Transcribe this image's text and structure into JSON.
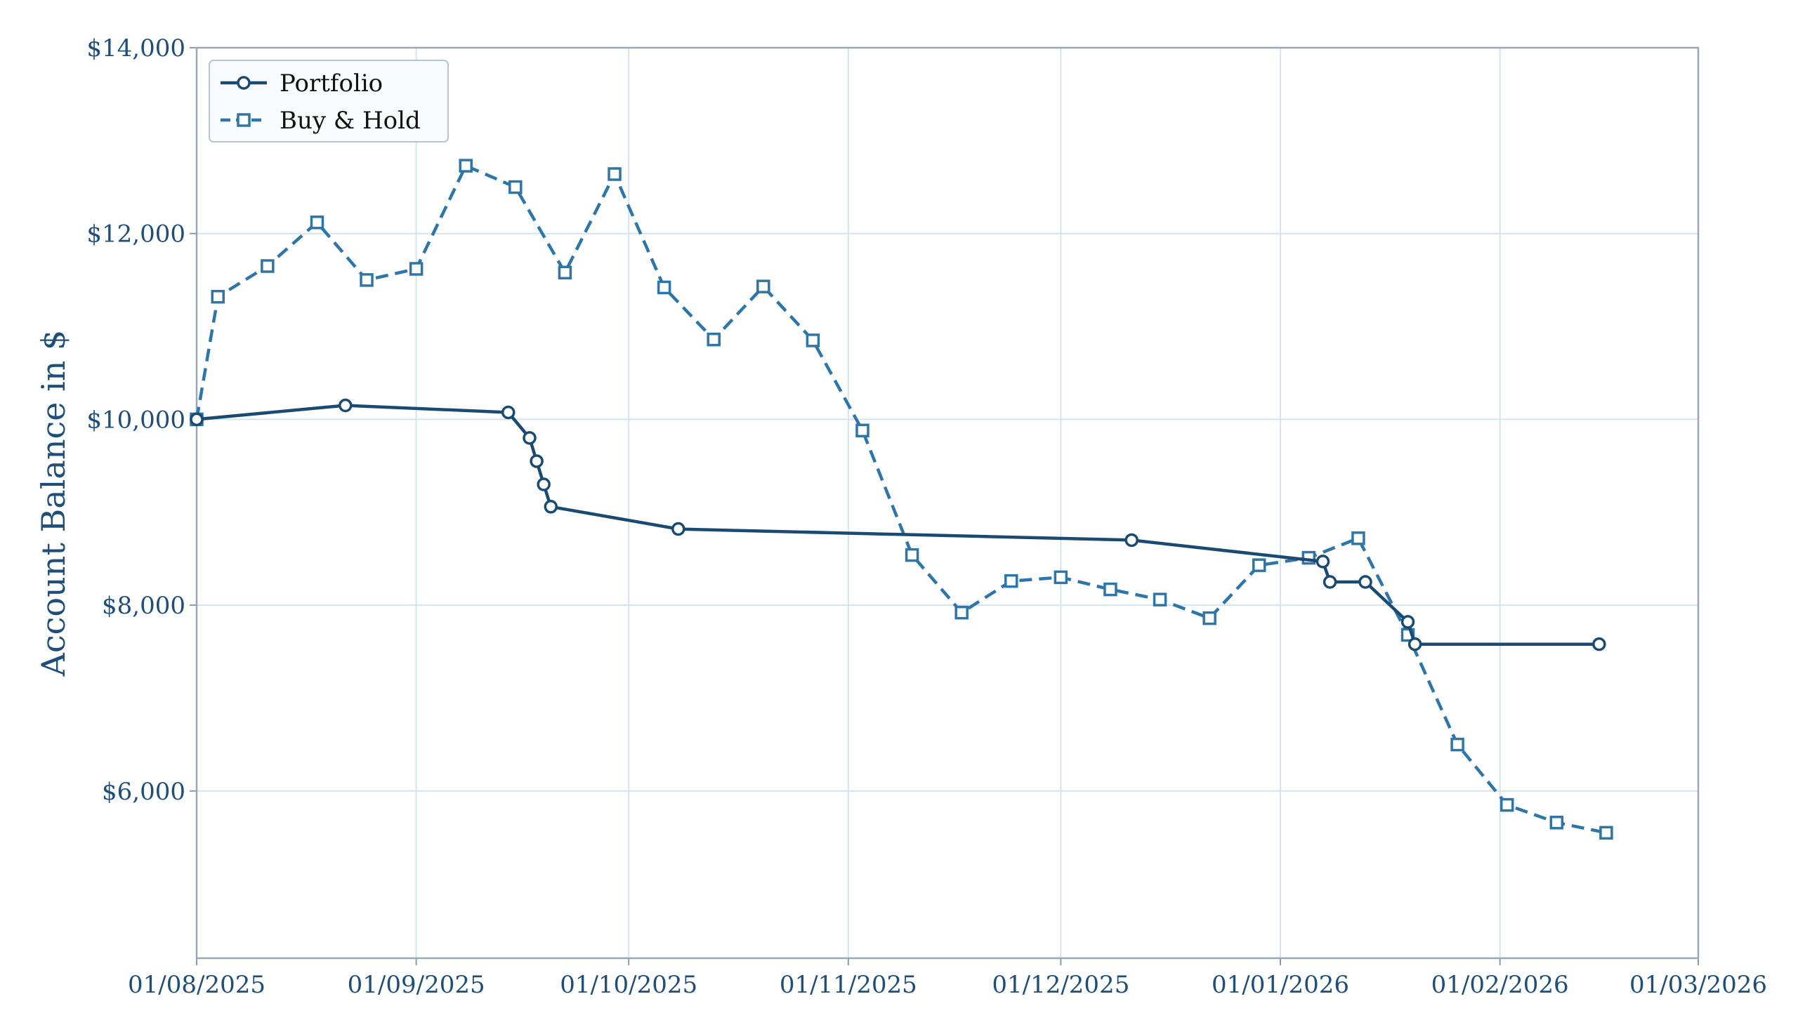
{
  "chart_data": {
    "type": "line",
    "title": "",
    "xlabel": "",
    "ylabel": "Account Balance in $",
    "x_axis": {
      "type": "date",
      "range": [
        "2025-08-01",
        "2026-03-01"
      ],
      "ticks": [
        {
          "date": "2025-08-01",
          "label": "01/08/2025"
        },
        {
          "date": "2025-09-01",
          "label": "01/09/2025"
        },
        {
          "date": "2025-10-01",
          "label": "01/10/2025"
        },
        {
          "date": "2025-11-01",
          "label": "01/11/2025"
        },
        {
          "date": "2025-12-01",
          "label": "01/12/2025"
        },
        {
          "date": "2026-01-01",
          "label": "01/01/2026"
        },
        {
          "date": "2026-02-01",
          "label": "01/02/2026"
        },
        {
          "date": "2026-03-01",
          "label": "01/03/2026"
        }
      ]
    },
    "y_axis": {
      "range": [
        4200,
        14000
      ],
      "ticks": [
        {
          "value": 6000,
          "label": "$6,000"
        },
        {
          "value": 8000,
          "label": "$8,000"
        },
        {
          "value": 10000,
          "label": "$10,000"
        },
        {
          "value": 12000,
          "label": "$12,000"
        },
        {
          "value": 14000,
          "label": "$14,000"
        }
      ]
    },
    "grid": true,
    "legend": {
      "placement": "top-left"
    },
    "series": [
      {
        "name": "Portfolio",
        "color": "#1a4a72",
        "line_style": "solid",
        "marker": "circle",
        "points": [
          {
            "x": "2025-08-01",
            "y": 10000
          },
          {
            "x": "2025-08-22",
            "y": 10150
          },
          {
            "x": "2025-09-14",
            "y": 10075
          },
          {
            "x": "2025-09-17",
            "y": 9800
          },
          {
            "x": "2025-09-18",
            "y": 9550
          },
          {
            "x": "2025-09-19",
            "y": 9300
          },
          {
            "x": "2025-09-20",
            "y": 9060
          },
          {
            "x": "2025-10-08",
            "y": 8820
          },
          {
            "x": "2025-12-11",
            "y": 8700
          },
          {
            "x": "2026-01-07",
            "y": 8470
          },
          {
            "x": "2026-01-08",
            "y": 8250
          },
          {
            "x": "2026-01-13",
            "y": 8250
          },
          {
            "x": "2026-01-19",
            "y": 7820
          },
          {
            "x": "2026-01-20",
            "y": 7580
          },
          {
            "x": "2026-02-15",
            "y": 7580
          }
        ]
      },
      {
        "name": "Buy & Hold",
        "color": "#2e75a8",
        "line_style": "dashed",
        "marker": "square",
        "points": [
          {
            "x": "2025-08-01",
            "y": 10000
          },
          {
            "x": "2025-08-04",
            "y": 11320
          },
          {
            "x": "2025-08-11",
            "y": 11650
          },
          {
            "x": "2025-08-18",
            "y": 12120
          },
          {
            "x": "2025-08-25",
            "y": 11500
          },
          {
            "x": "2025-09-01",
            "y": 11620
          },
          {
            "x": "2025-09-08",
            "y": 12730
          },
          {
            "x": "2025-09-15",
            "y": 12500
          },
          {
            "x": "2025-09-22",
            "y": 11580
          },
          {
            "x": "2025-09-29",
            "y": 12640
          },
          {
            "x": "2025-10-06",
            "y": 11420
          },
          {
            "x": "2025-10-13",
            "y": 10860
          },
          {
            "x": "2025-10-20",
            "y": 11430
          },
          {
            "x": "2025-10-27",
            "y": 10850
          },
          {
            "x": "2025-11-03",
            "y": 9880
          },
          {
            "x": "2025-11-10",
            "y": 8540
          },
          {
            "x": "2025-11-17",
            "y": 7920
          },
          {
            "x": "2025-11-24",
            "y": 8260
          },
          {
            "x": "2025-12-01",
            "y": 8300
          },
          {
            "x": "2025-12-08",
            "y": 8170
          },
          {
            "x": "2025-12-15",
            "y": 8060
          },
          {
            "x": "2025-12-22",
            "y": 7860
          },
          {
            "x": "2025-12-29",
            "y": 8430
          },
          {
            "x": "2026-01-05",
            "y": 8510
          },
          {
            "x": "2026-01-12",
            "y": 8720
          },
          {
            "x": "2026-01-19",
            "y": 7680
          },
          {
            "x": "2026-01-26",
            "y": 6500
          },
          {
            "x": "2026-02-02",
            "y": 5850
          },
          {
            "x": "2026-02-09",
            "y": 5660
          },
          {
            "x": "2026-02-16",
            "y": 5550
          }
        ]
      }
    ]
  }
}
